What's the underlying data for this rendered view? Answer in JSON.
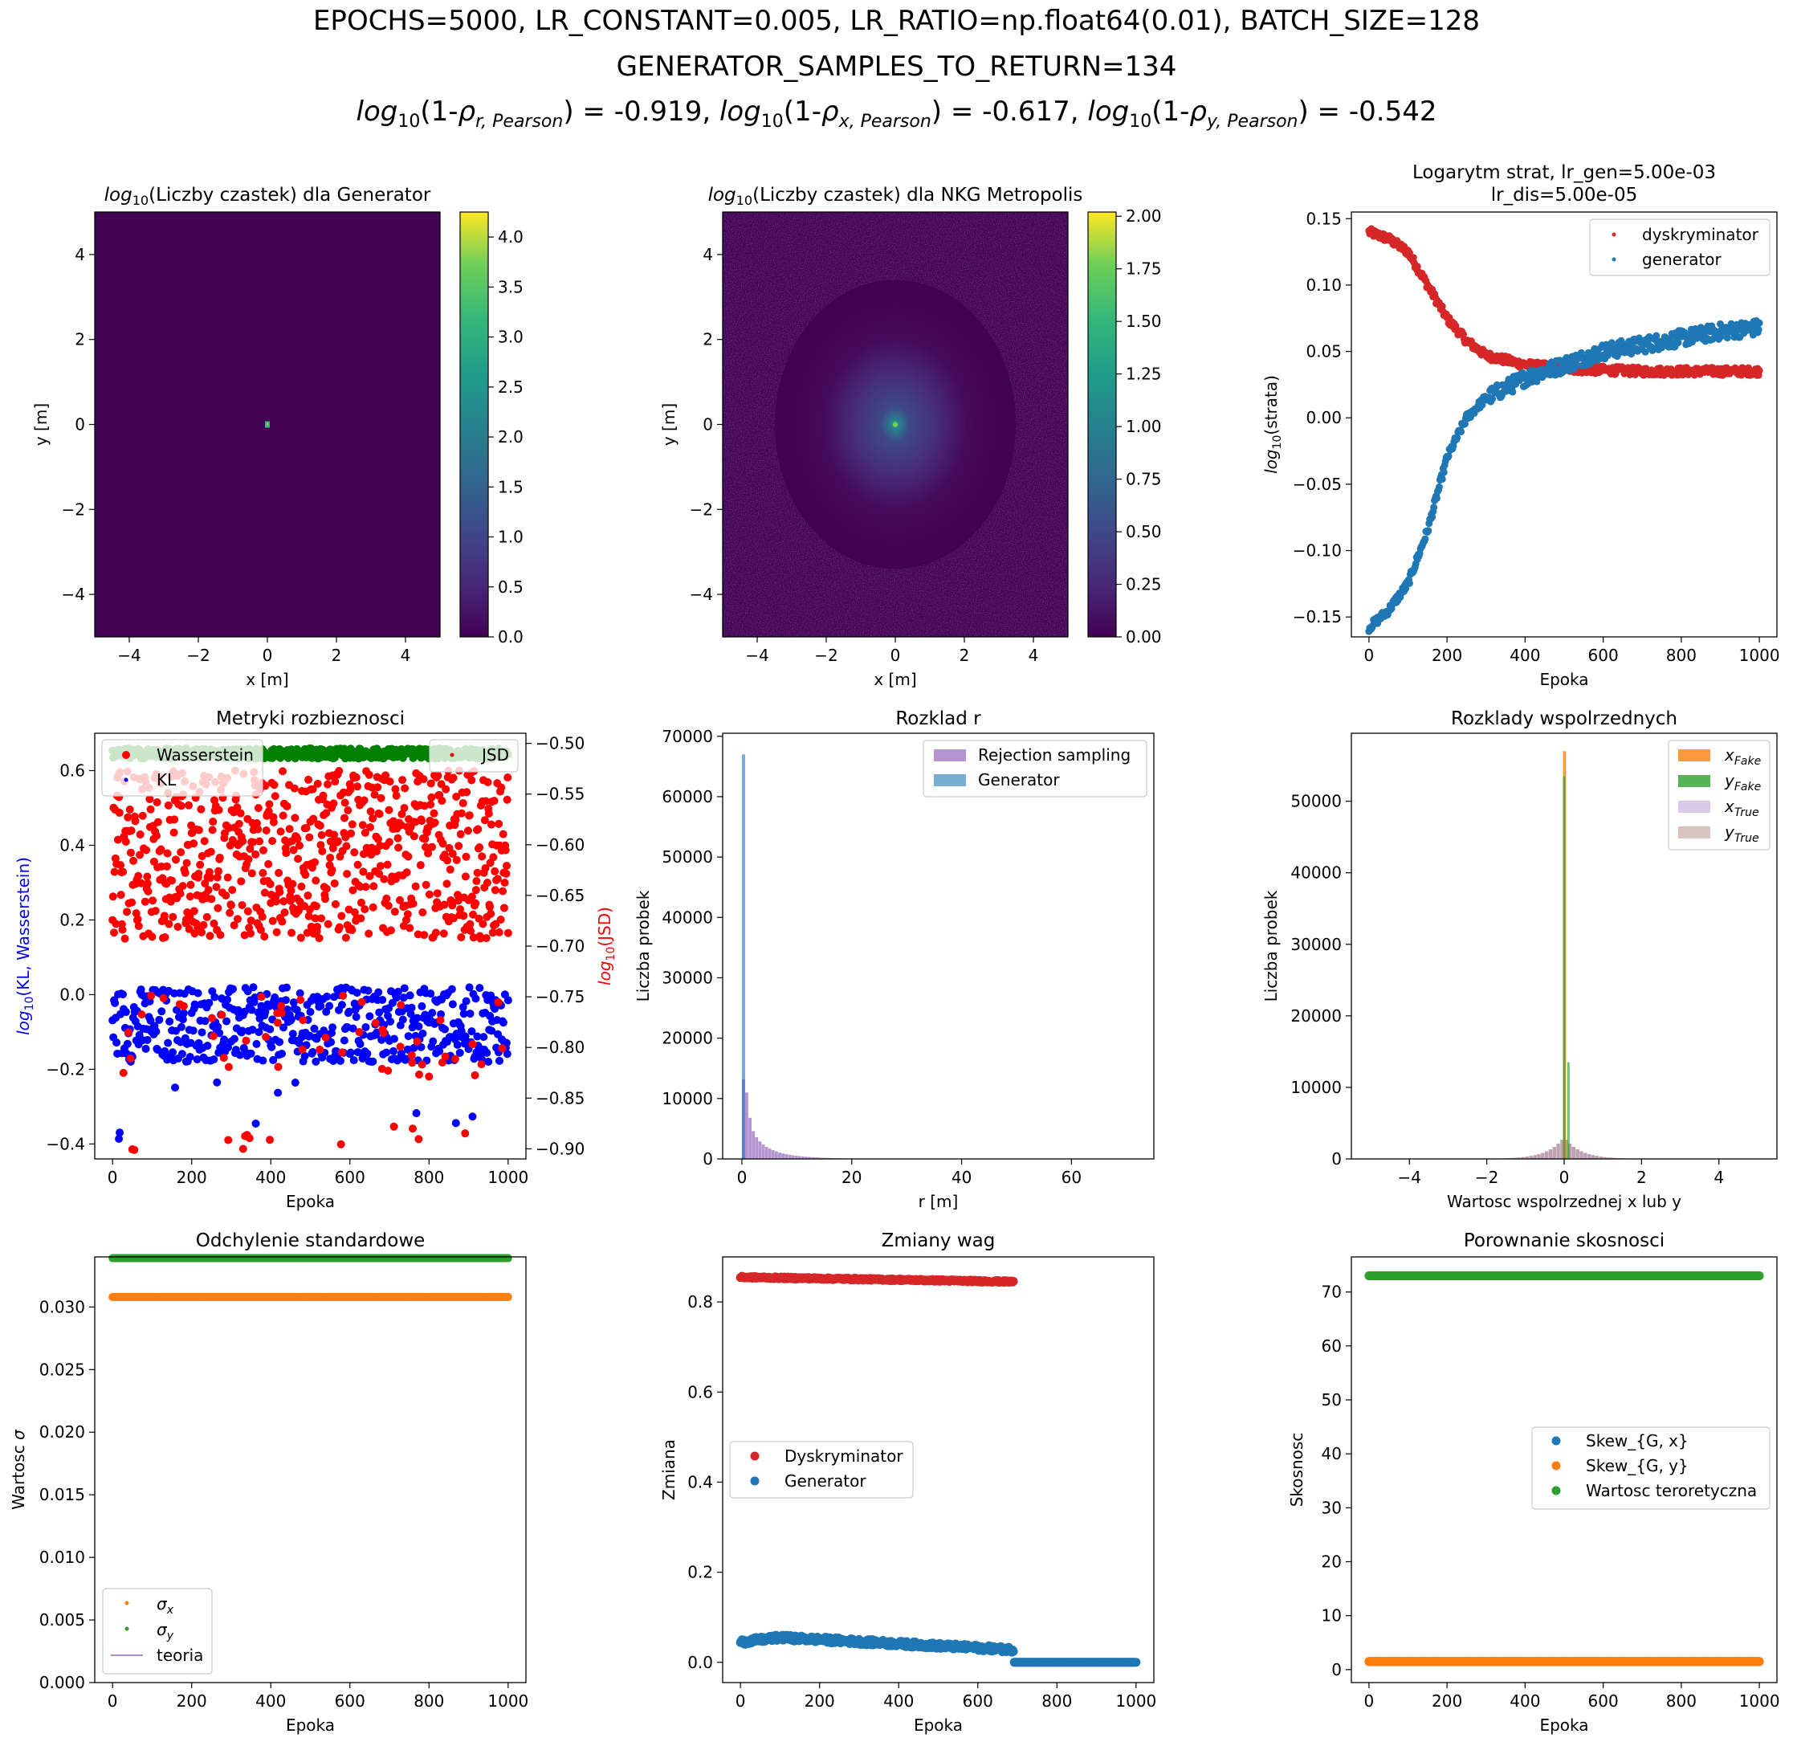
{
  "suptitle": {
    "line1": "EPOCHS=5000, LR_CONSTANT=0.005, LR_RATIO=np.float64(0.01), BATCH_SIZE=128",
    "line2": "GENERATOR_SAMPLES_TO_RETURN=134",
    "line3": {
      "log_prefix": "log",
      "log_base": "10",
      "rho": "ρ",
      "sub_r": "r, Pearson",
      "sub_x": "x, Pearson",
      "sub_y": "y, Pearson",
      "val_r": "-0.919",
      "val_x": "-0.617",
      "val_y": "-0.542"
    }
  },
  "colors": {
    "red": "#d62728",
    "blue": "#1f77b4",
    "orange": "#ff7f0e",
    "green": "#2ca02c",
    "purple": "#9467bd",
    "brown": "#8c564b",
    "pure_red": "#ff0000",
    "pure_blue": "#0000ff",
    "pure_green": "#008000",
    "viridis_low": "#440154",
    "viridis_high": "#fde725"
  },
  "chart_data": [
    {
      "id": "heatmap_generator",
      "type": "heatmap",
      "title": "log10(Liczby czastek) dla Generator",
      "title_sub": "10",
      "title_prefix": "log",
      "title_rest": "(Liczby czastek) dla Generator",
      "xlabel": "x [m]",
      "ylabel": "y [m]",
      "xlim": [
        -5,
        5
      ],
      "ylim": [
        -5,
        5
      ],
      "xticks": [
        "−4",
        "−2",
        "0",
        "2",
        "4"
      ],
      "yticks": [
        "−4",
        "−2",
        "0",
        "2",
        "4"
      ],
      "colorbar_ticks": [
        "0.0",
        "0.5",
        "1.0",
        "1.5",
        "2.0",
        "2.5",
        "3.0",
        "3.5",
        "4.0"
      ],
      "colorbar_range": [
        0,
        4.25
      ],
      "description_values": {
        "hotspot_x": 0,
        "hotspot_y": 0
      }
    },
    {
      "id": "heatmap_nkg",
      "type": "heatmap",
      "title_prefix": "log",
      "title_sub": "10",
      "title_rest": "(Liczby czastek) dla NKG Metropolis",
      "xlabel": "x [m]",
      "ylabel": "y [m]",
      "xlim": [
        -5,
        5
      ],
      "ylim": [
        -5,
        5
      ],
      "xticks": [
        "−4",
        "−2",
        "0",
        "2",
        "4"
      ],
      "yticks": [
        "−4",
        "−2",
        "0",
        "2",
        "4"
      ],
      "colorbar_ticks": [
        "0.00",
        "0.25",
        "0.50",
        "0.75",
        "1.00",
        "1.25",
        "1.50",
        "1.75",
        "2.00"
      ],
      "colorbar_range": [
        0,
        2.02
      ]
    },
    {
      "id": "loss",
      "type": "scatter",
      "title_line1": "Logarytm strat, lr_gen=5.00e-03",
      "title_line2": "lr_dis=5.00e-05",
      "xlabel": "Epoka",
      "ylabel_prefix": "log",
      "ylabel_sub": "10",
      "ylabel_rest": "(strata)",
      "xlim": [
        -45,
        1045
      ],
      "ylim": [
        -0.165,
        0.155
      ],
      "xticks": [
        "0",
        "200",
        "400",
        "600",
        "800",
        "1000"
      ],
      "yticks": [
        "−0.15",
        "−0.10",
        "−0.05",
        "0.00",
        "0.05",
        "0.10",
        "0.15"
      ],
      "series": [
        {
          "name": "dyskryminator",
          "color": "#d62728",
          "x": [
            0,
            50,
            100,
            150,
            200,
            250,
            300,
            400,
            500,
            600,
            700,
            800,
            900,
            1000
          ],
          "y": [
            0.14,
            0.135,
            0.125,
            0.1,
            0.075,
            0.058,
            0.047,
            0.04,
            0.037,
            0.036,
            0.035,
            0.035,
            0.035,
            0.035
          ]
        },
        {
          "name": "generator",
          "color": "#1f77b4",
          "x": [
            0,
            50,
            100,
            150,
            200,
            250,
            300,
            400,
            500,
            600,
            700,
            800,
            900,
            1000
          ],
          "y": [
            -0.158,
            -0.145,
            -0.125,
            -0.085,
            -0.03,
            0.0,
            0.015,
            0.03,
            0.04,
            0.05,
            0.055,
            0.06,
            0.065,
            0.068
          ]
        }
      ],
      "legend": "upper right"
    },
    {
      "id": "divergence",
      "type": "scatter",
      "title": "Metryki rozbieznosci",
      "xlabel": "Epoka",
      "ylabel_left_prefix": "log",
      "ylabel_left_sub": "10",
      "ylabel_left_rest": "(KL, Wasserstein)",
      "ylabel_right_prefix": "log",
      "ylabel_right_sub": "10",
      "ylabel_right_rest": "(JSD)",
      "xlim": [
        -45,
        1045
      ],
      "ylim_left": [
        -0.44,
        0.7
      ],
      "ylim_right": [
        -0.91,
        -0.49
      ],
      "xticks": [
        "0",
        "200",
        "400",
        "600",
        "800",
        "1000"
      ],
      "yticks_left": [
        "−0.4",
        "−0.2",
        "0.0",
        "0.2",
        "0.4",
        "0.6"
      ],
      "yticks_right": [
        "−0.50",
        "−0.55",
        "−0.60",
        "−0.65",
        "−0.70",
        "−0.75",
        "−0.80",
        "−0.85",
        "−0.90"
      ],
      "series": [
        {
          "name": "Wasserstein",
          "color": "#ff0000",
          "y_band_left": [
            0.15,
            0.6
          ],
          "outliers_left": [
            -0.37,
            -0.4,
            -0.36
          ]
        },
        {
          "name": "KL",
          "color": "#0000ff",
          "y_band_left": [
            -0.18,
            0.02
          ]
        },
        {
          "name": "JSD",
          "color": "#008000",
          "y_band_right": [
            -0.515,
            -0.505
          ]
        }
      ]
    },
    {
      "id": "r_distribution",
      "type": "bar",
      "title": "Rozklad r",
      "xlabel": "r [m]",
      "ylabel": "Liczba probek",
      "xlim": [
        -3.5,
        75
      ],
      "ylim": [
        0,
        70500
      ],
      "xticks": [
        "0",
        "20",
        "40",
        "60"
      ],
      "yticks": [
        "0",
        "10000",
        "20000",
        "30000",
        "40000",
        "50000",
        "60000",
        "70000"
      ],
      "series": [
        {
          "name": "Rejection sampling",
          "color": "#9467bd",
          "bin_width": 0.6,
          "values": [
            13200,
            11000,
            6800,
            4600,
            3600,
            2900,
            2400,
            2000,
            1700,
            1450,
            1250,
            1050,
            900,
            800,
            700,
            600,
            530,
            470,
            420,
            370,
            330,
            290,
            260,
            230,
            200,
            180,
            160,
            140,
            120,
            100,
            90,
            80,
            70,
            60,
            50,
            40,
            35,
            30
          ]
        },
        {
          "name": "Generator",
          "color": "#1f77b4",
          "bin_width": 0.6,
          "values": [
            67000
          ]
        }
      ]
    },
    {
      "id": "coord_distribution",
      "type": "bar",
      "title": "Rozklady wspolrzednych",
      "xlabel": "Wartosc wspolrzednej x lub y",
      "ylabel": "Liczba probek",
      "xlim": [
        -5.5,
        5.5
      ],
      "ylim": [
        0,
        59500
      ],
      "xticks": [
        "−4",
        "−2",
        "0",
        "2",
        "4"
      ],
      "yticks": [
        "0",
        "10000",
        "20000",
        "30000",
        "40000",
        "50000"
      ],
      "series": [
        {
          "name": "x_Fake",
          "name_main": "x",
          "name_sub": "Fake",
          "color": "#ff7f0e",
          "x": [
            -0.03
          ],
          "values": [
            57000
          ]
        },
        {
          "name": "y_Fake",
          "name_main": "y",
          "name_sub": "Fake",
          "color": "#2ca02c",
          "x": [
            -0.03,
            0.08
          ],
          "values": [
            53500,
            13500
          ]
        },
        {
          "name": "x_True",
          "name_main": "x",
          "name_sub": "True",
          "color": "#9467bd",
          "peak": 3000
        },
        {
          "name": "y_True",
          "name_main": "y",
          "name_sub": "True",
          "color": "#8c564b",
          "peak": 3000
        }
      ]
    },
    {
      "id": "std",
      "type": "scatter",
      "title": "Odchylenie standardowe",
      "xlabel": "Epoka",
      "ylabel_prefix": "Wartosc ",
      "ylabel_sym": "σ",
      "xlim": [
        -45,
        1045
      ],
      "ylim": [
        0,
        0.034
      ],
      "xticks": [
        "0",
        "200",
        "400",
        "600",
        "800",
        "1000"
      ],
      "yticks": [
        "0.000",
        "0.005",
        "0.010",
        "0.015",
        "0.020",
        "0.025",
        "0.030"
      ],
      "series": [
        {
          "name": "σx",
          "name_main": "σ",
          "name_sub": "x",
          "color": "#ff7f0e",
          "value": 0.0308
        },
        {
          "name": "σy",
          "name_main": "σ",
          "name_sub": "y",
          "color": "#2ca02c",
          "value": 0.0339
        },
        {
          "name": "teoria",
          "color": "#9467bd"
        }
      ]
    },
    {
      "id": "weights",
      "type": "scatter",
      "title": "Zmiany wag",
      "xlabel": "Epoka",
      "ylabel": "Zmiana",
      "xlim": [
        -45,
        1045
      ],
      "ylim": [
        -0.045,
        0.9
      ],
      "xticks": [
        "0",
        "200",
        "400",
        "600",
        "800",
        "1000"
      ],
      "yticks": [
        "0.0",
        "0.2",
        "0.4",
        "0.6",
        "0.8"
      ],
      "series": [
        {
          "name": "Dyskryminator",
          "color": "#d62728",
          "x": [
            0,
            690
          ],
          "y": [
            0.855,
            0.845
          ]
        },
        {
          "name": "Generator",
          "color": "#1f77b4",
          "x": [
            0,
            100,
            690,
            691,
            1000
          ],
          "y": [
            0.045,
            0.055,
            0.028,
            0.0,
            0.0
          ]
        }
      ]
    },
    {
      "id": "skewness",
      "type": "scatter",
      "title": "Porownanie skosnosci",
      "xlabel": "Epoka",
      "ylabel": "Skosnosc",
      "xlim": [
        -45,
        1045
      ],
      "ylim": [
        -2.4,
        76.5
      ],
      "xticks": [
        "0",
        "200",
        "400",
        "600",
        "800",
        "1000"
      ],
      "yticks": [
        "0",
        "10",
        "20",
        "30",
        "40",
        "50",
        "60",
        "70"
      ],
      "series": [
        {
          "name": "Skew_{G, x}",
          "color": "#1f77b4",
          "value": 1.5
        },
        {
          "name": "Skew_{G, y}",
          "color": "#ff7f0e",
          "value": 1.5
        },
        {
          "name": "Wartosc teroretyczna",
          "color": "#2ca02c",
          "value": 73
        }
      ]
    }
  ]
}
